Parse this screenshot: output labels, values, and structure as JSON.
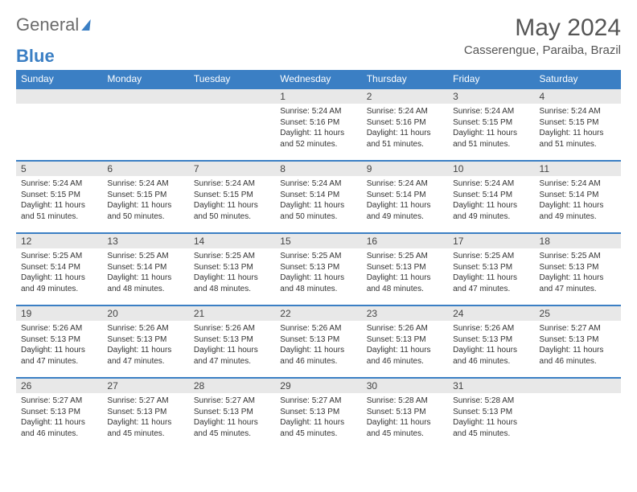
{
  "logo": {
    "text1": "General",
    "text2": "Blue"
  },
  "title": "May 2024",
  "location": "Casserengue, Paraiba, Brazil",
  "colors": {
    "header_bg": "#3b7fc4",
    "header_text": "#ffffff",
    "daynum_bg": "#e8e8e8",
    "border": "#3b7fc4",
    "text": "#333333",
    "title_text": "#555555"
  },
  "day_names": [
    "Sunday",
    "Monday",
    "Tuesday",
    "Wednesday",
    "Thursday",
    "Friday",
    "Saturday"
  ],
  "weeks": [
    [
      null,
      null,
      null,
      {
        "d": "1",
        "sr": "5:24 AM",
        "ss": "5:16 PM",
        "dh": "11",
        "dm": "52"
      },
      {
        "d": "2",
        "sr": "5:24 AM",
        "ss": "5:16 PM",
        "dh": "11",
        "dm": "51"
      },
      {
        "d": "3",
        "sr": "5:24 AM",
        "ss": "5:15 PM",
        "dh": "11",
        "dm": "51"
      },
      {
        "d": "4",
        "sr": "5:24 AM",
        "ss": "5:15 PM",
        "dh": "11",
        "dm": "51"
      }
    ],
    [
      {
        "d": "5",
        "sr": "5:24 AM",
        "ss": "5:15 PM",
        "dh": "11",
        "dm": "51"
      },
      {
        "d": "6",
        "sr": "5:24 AM",
        "ss": "5:15 PM",
        "dh": "11",
        "dm": "50"
      },
      {
        "d": "7",
        "sr": "5:24 AM",
        "ss": "5:15 PM",
        "dh": "11",
        "dm": "50"
      },
      {
        "d": "8",
        "sr": "5:24 AM",
        "ss": "5:14 PM",
        "dh": "11",
        "dm": "50"
      },
      {
        "d": "9",
        "sr": "5:24 AM",
        "ss": "5:14 PM",
        "dh": "11",
        "dm": "49"
      },
      {
        "d": "10",
        "sr": "5:24 AM",
        "ss": "5:14 PM",
        "dh": "11",
        "dm": "49"
      },
      {
        "d": "11",
        "sr": "5:24 AM",
        "ss": "5:14 PM",
        "dh": "11",
        "dm": "49"
      }
    ],
    [
      {
        "d": "12",
        "sr": "5:25 AM",
        "ss": "5:14 PM",
        "dh": "11",
        "dm": "49"
      },
      {
        "d": "13",
        "sr": "5:25 AM",
        "ss": "5:14 PM",
        "dh": "11",
        "dm": "48"
      },
      {
        "d": "14",
        "sr": "5:25 AM",
        "ss": "5:13 PM",
        "dh": "11",
        "dm": "48"
      },
      {
        "d": "15",
        "sr": "5:25 AM",
        "ss": "5:13 PM",
        "dh": "11",
        "dm": "48"
      },
      {
        "d": "16",
        "sr": "5:25 AM",
        "ss": "5:13 PM",
        "dh": "11",
        "dm": "48"
      },
      {
        "d": "17",
        "sr": "5:25 AM",
        "ss": "5:13 PM",
        "dh": "11",
        "dm": "47"
      },
      {
        "d": "18",
        "sr": "5:25 AM",
        "ss": "5:13 PM",
        "dh": "11",
        "dm": "47"
      }
    ],
    [
      {
        "d": "19",
        "sr": "5:26 AM",
        "ss": "5:13 PM",
        "dh": "11",
        "dm": "47"
      },
      {
        "d": "20",
        "sr": "5:26 AM",
        "ss": "5:13 PM",
        "dh": "11",
        "dm": "47"
      },
      {
        "d": "21",
        "sr": "5:26 AM",
        "ss": "5:13 PM",
        "dh": "11",
        "dm": "47"
      },
      {
        "d": "22",
        "sr": "5:26 AM",
        "ss": "5:13 PM",
        "dh": "11",
        "dm": "46"
      },
      {
        "d": "23",
        "sr": "5:26 AM",
        "ss": "5:13 PM",
        "dh": "11",
        "dm": "46"
      },
      {
        "d": "24",
        "sr": "5:26 AM",
        "ss": "5:13 PM",
        "dh": "11",
        "dm": "46"
      },
      {
        "d": "25",
        "sr": "5:27 AM",
        "ss": "5:13 PM",
        "dh": "11",
        "dm": "46"
      }
    ],
    [
      {
        "d": "26",
        "sr": "5:27 AM",
        "ss": "5:13 PM",
        "dh": "11",
        "dm": "46"
      },
      {
        "d": "27",
        "sr": "5:27 AM",
        "ss": "5:13 PM",
        "dh": "11",
        "dm": "45"
      },
      {
        "d": "28",
        "sr": "5:27 AM",
        "ss": "5:13 PM",
        "dh": "11",
        "dm": "45"
      },
      {
        "d": "29",
        "sr": "5:27 AM",
        "ss": "5:13 PM",
        "dh": "11",
        "dm": "45"
      },
      {
        "d": "30",
        "sr": "5:28 AM",
        "ss": "5:13 PM",
        "dh": "11",
        "dm": "45"
      },
      {
        "d": "31",
        "sr": "5:28 AM",
        "ss": "5:13 PM",
        "dh": "11",
        "dm": "45"
      },
      null
    ]
  ],
  "labels": {
    "sunrise": "Sunrise:",
    "sunset": "Sunset:",
    "daylight": "Daylight:",
    "hours": "hours",
    "and": "and",
    "minutes": "minutes."
  }
}
